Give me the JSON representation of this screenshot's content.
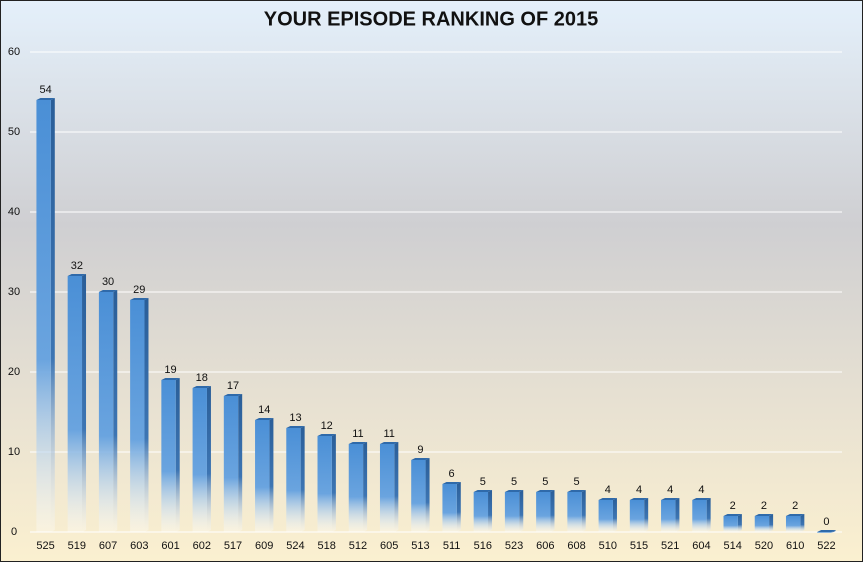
{
  "chart_data": {
    "type": "bar",
    "title": "YOUR EPISODE RANKING OF 2015",
    "categories": [
      "525",
      "519",
      "607",
      "603",
      "601",
      "602",
      "517",
      "609",
      "524",
      "518",
      "512",
      "605",
      "513",
      "511",
      "516",
      "523",
      "606",
      "608",
      "510",
      "515",
      "521",
      "604",
      "514",
      "520",
      "610",
      "522"
    ],
    "values": [
      54,
      32,
      30,
      29,
      19,
      18,
      17,
      14,
      13,
      12,
      11,
      11,
      9,
      6,
      5,
      5,
      5,
      5,
      4,
      4,
      4,
      4,
      2,
      2,
      2,
      0
    ],
    "color": "#4a8fd6",
    "ylim": [
      0,
      60
    ],
    "yticks": [
      0,
      10,
      20,
      30,
      40,
      50,
      60
    ],
    "grid": true
  }
}
